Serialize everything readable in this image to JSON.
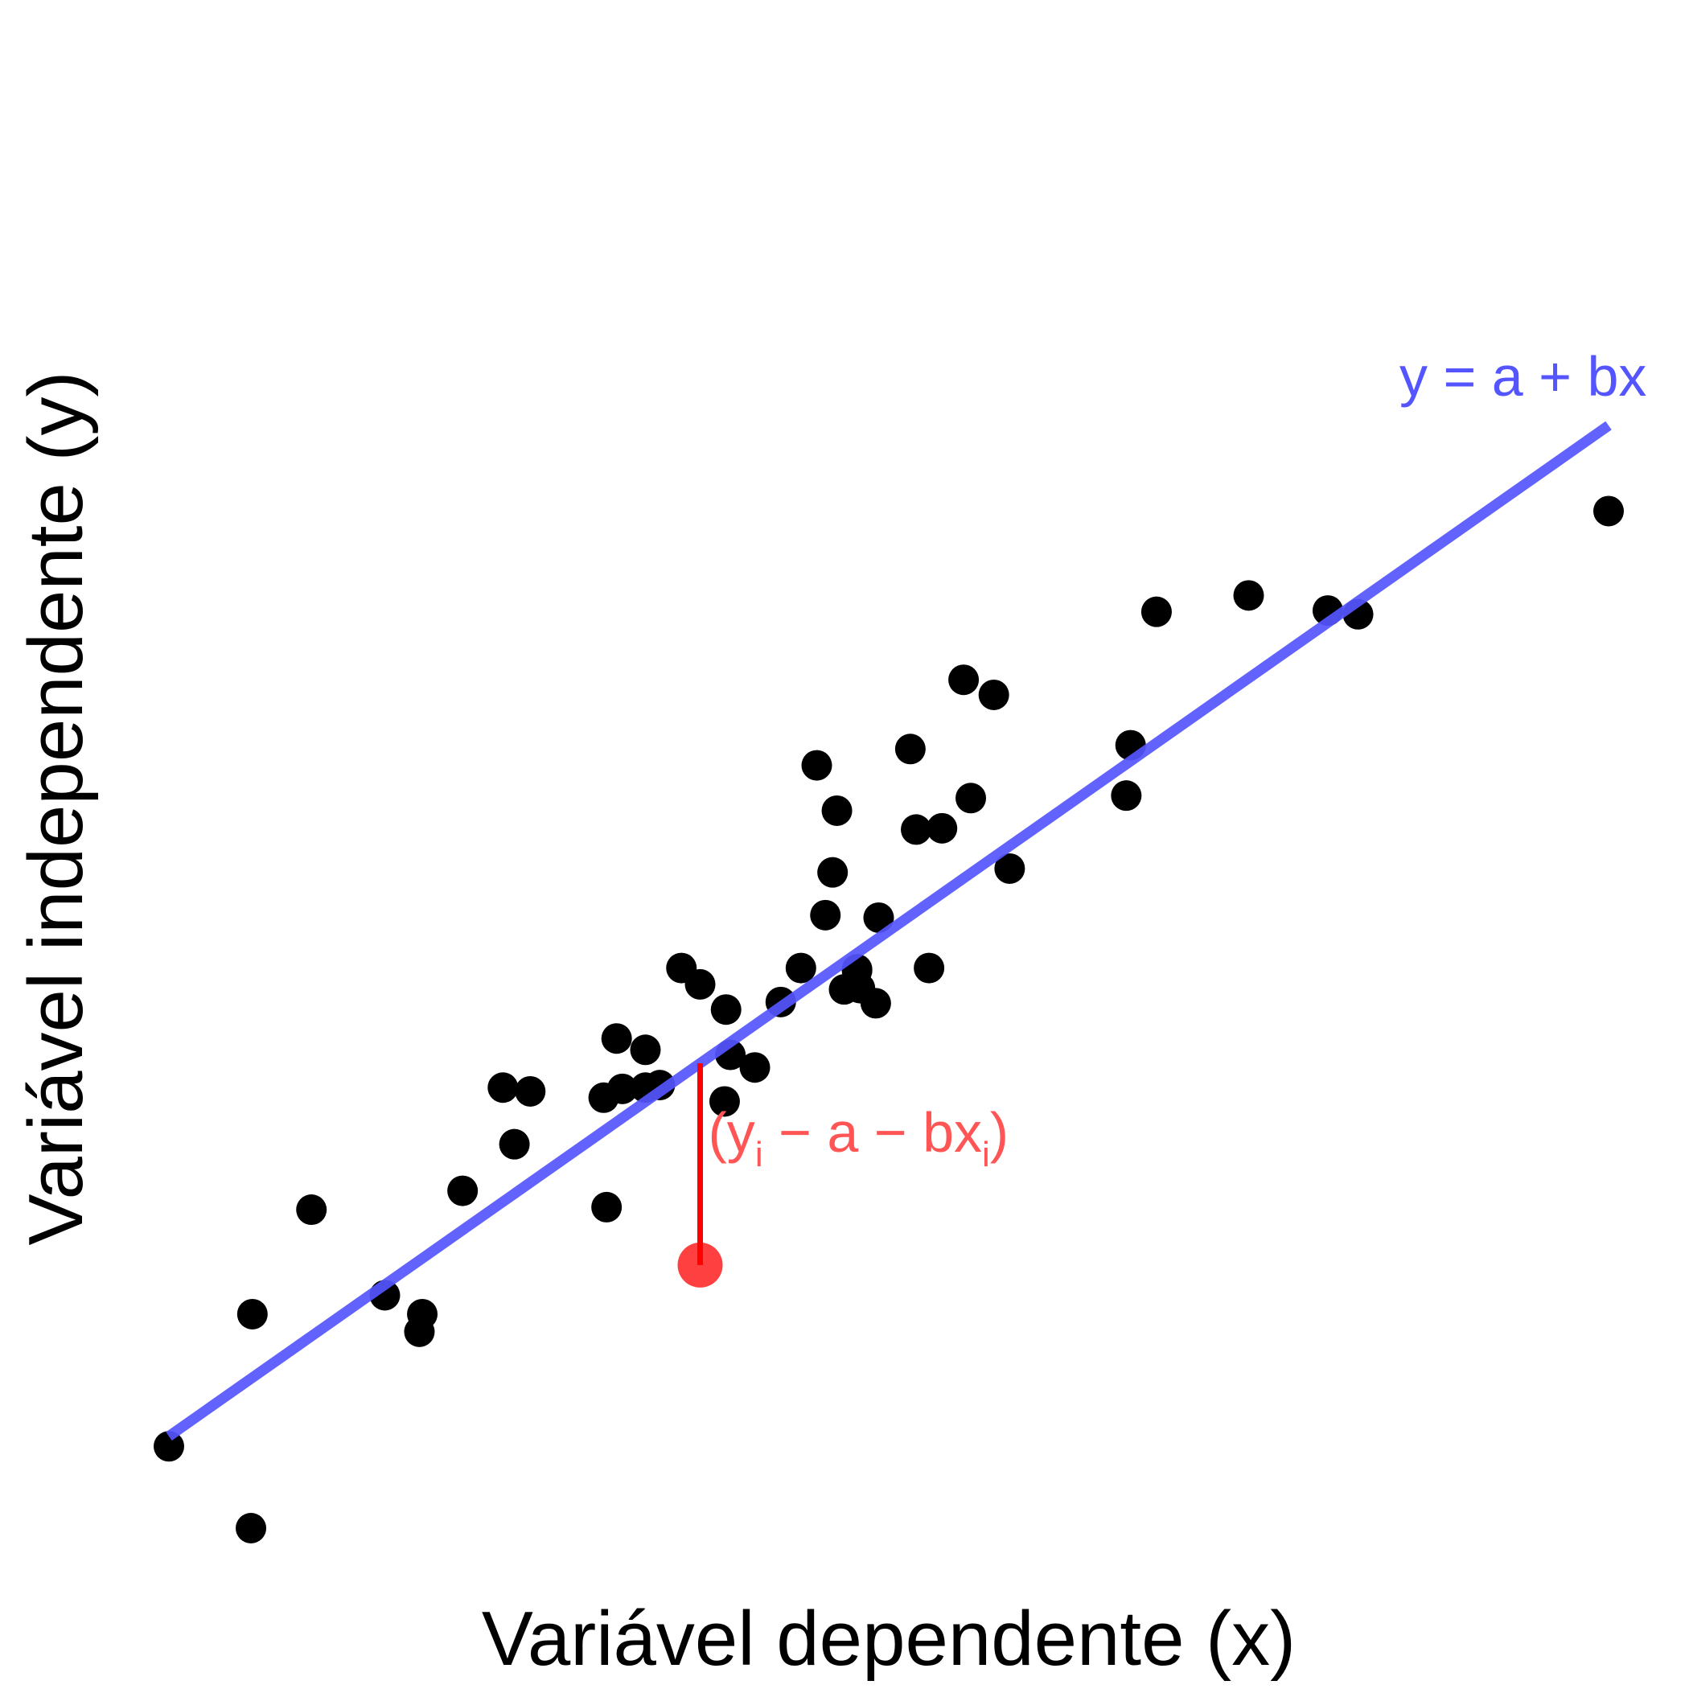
{
  "chart_data": {
    "type": "scatter",
    "xlabel": "Variável dependente (x)",
    "ylabel": "Variável independente (y)",
    "xlim": [
      0,
      100
    ],
    "ylim": [
      0,
      100
    ],
    "grid": false,
    "axes_visible": false,
    "point_color": "#000000",
    "points": [
      {
        "x": 0.0,
        "y": 6.5
      },
      {
        "x": 5.7,
        "y": 0.0
      },
      {
        "x": 5.8,
        "y": 17.0
      },
      {
        "x": 9.9,
        "y": 25.3
      },
      {
        "x": 15.0,
        "y": 18.5
      },
      {
        "x": 17.4,
        "y": 15.6
      },
      {
        "x": 17.6,
        "y": 17.0
      },
      {
        "x": 20.4,
        "y": 26.8
      },
      {
        "x": 23.2,
        "y": 35.0
      },
      {
        "x": 24.0,
        "y": 30.5
      },
      {
        "x": 25.1,
        "y": 34.7
      },
      {
        "x": 30.4,
        "y": 25.5
      },
      {
        "x": 30.2,
        "y": 34.2
      },
      {
        "x": 31.1,
        "y": 38.9
      },
      {
        "x": 31.5,
        "y": 34.9
      },
      {
        "x": 33.1,
        "y": 35.0
      },
      {
        "x": 33.1,
        "y": 38.0
      },
      {
        "x": 34.1,
        "y": 35.2
      },
      {
        "x": 35.6,
        "y": 44.5
      },
      {
        "x": 36.9,
        "y": 43.2
      },
      {
        "x": 38.6,
        "y": 33.9
      },
      {
        "x": 38.7,
        "y": 41.2
      },
      {
        "x": 39.0,
        "y": 37.6
      },
      {
        "x": 40.7,
        "y": 36.6
      },
      {
        "x": 42.5,
        "y": 41.8
      },
      {
        "x": 43.9,
        "y": 44.5
      },
      {
        "x": 45.0,
        "y": 60.6
      },
      {
        "x": 45.6,
        "y": 48.7
      },
      {
        "x": 46.1,
        "y": 52.1
      },
      {
        "x": 46.4,
        "y": 57.0
      },
      {
        "x": 46.9,
        "y": 42.8
      },
      {
        "x": 47.8,
        "y": 44.4
      },
      {
        "x": 48.0,
        "y": 42.9
      },
      {
        "x": 47.8,
        "y": 44.3
      },
      {
        "x": 49.1,
        "y": 41.7
      },
      {
        "x": 49.3,
        "y": 48.5
      },
      {
        "x": 51.5,
        "y": 61.9
      },
      {
        "x": 51.9,
        "y": 55.5
      },
      {
        "x": 52.8,
        "y": 44.5
      },
      {
        "x": 53.7,
        "y": 55.6
      },
      {
        "x": 55.2,
        "y": 67.4
      },
      {
        "x": 55.7,
        "y": 58.0
      },
      {
        "x": 57.3,
        "y": 66.2
      },
      {
        "x": 58.4,
        "y": 52.4
      },
      {
        "x": 66.5,
        "y": 58.2
      },
      {
        "x": 66.8,
        "y": 62.2
      },
      {
        "x": 68.6,
        "y": 72.8
      },
      {
        "x": 75.0,
        "y": 74.1
      },
      {
        "x": 80.5,
        "y": 72.9
      },
      {
        "x": 82.6,
        "y": 72.6
      },
      {
        "x": 100.0,
        "y": 80.8
      }
    ],
    "regression_line": {
      "color": "#5555ff",
      "x": [
        0,
        100
      ],
      "y": [
        7.3,
        87.6
      ],
      "label": "y = a + bx"
    },
    "highlight": {
      "point": {
        "x": 36.9,
        "y": 20.9
      },
      "color": "#ff0000",
      "label_main": "(y",
      "label_sub1": "i",
      "label_mid": " − a − bx",
      "label_sub2": "i",
      "label_end": ")"
    }
  }
}
